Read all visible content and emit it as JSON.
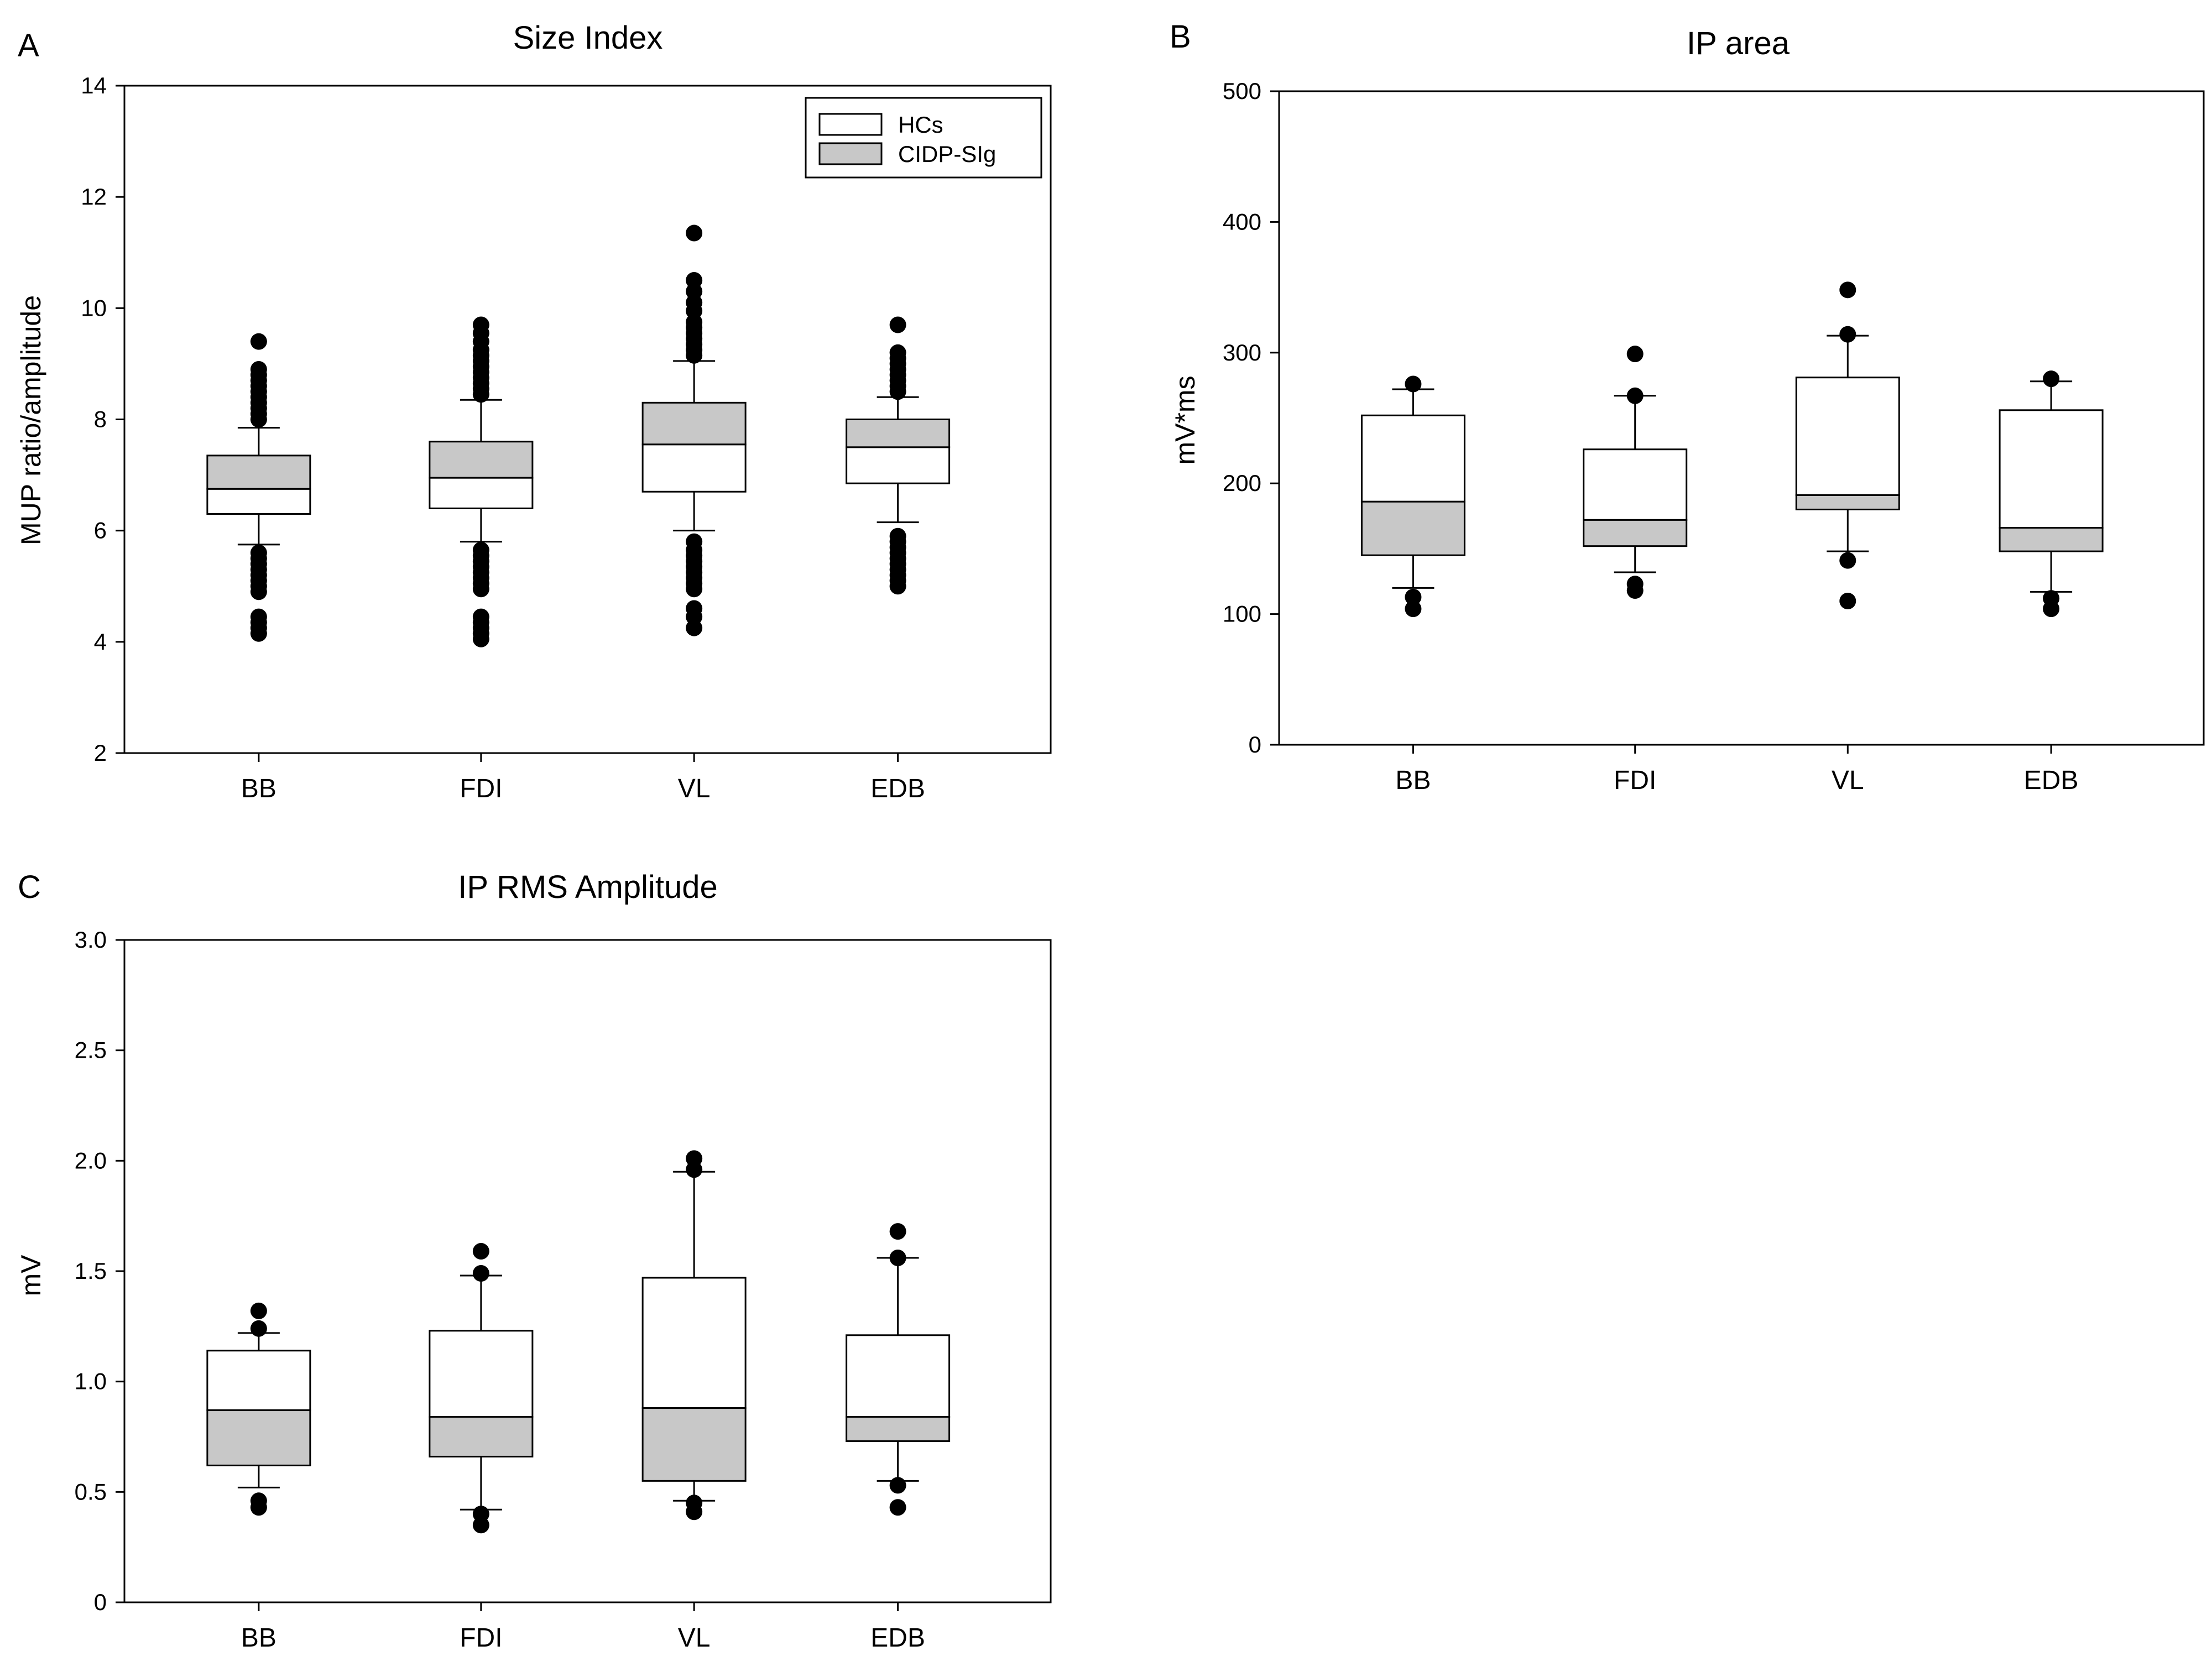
{
  "figure": {
    "legend": {
      "position": "top-right of panel A",
      "entries": [
        {
          "label": "HCs",
          "fill": "#ffffff"
        },
        {
          "label": "CIDP-SIg",
          "fill": "#c8c8c8"
        }
      ]
    }
  },
  "chart_data": [
    {
      "type": "box",
      "panel_label": "A",
      "title": "Size Index",
      "xlabel": "",
      "ylabel": "MUP ratio/amplitude",
      "ylim": [
        2,
        14
      ],
      "yticks": [
        2,
        4,
        6,
        8,
        10,
        12,
        14
      ],
      "ytick_labels": [
        "2",
        "4",
        "6",
        "8",
        "10",
        "12",
        "14"
      ],
      "categories": [
        "BB",
        "FDI",
        "VL",
        "EDB"
      ],
      "series": [
        {
          "name": "HCs",
          "fill": "#ffffff",
          "boxes": [
            [
              6.3,
              6.75
            ],
            [
              6.4,
              6.95
            ],
            [
              6.7,
              7.55
            ],
            [
              6.85,
              7.5
            ]
          ]
        },
        {
          "name": "CIDP-SIg",
          "fill": "#c8c8c8",
          "boxes": [
            [
              6.75,
              7.35
            ],
            [
              6.95,
              7.6
            ],
            [
              7.55,
              8.3
            ],
            [
              7.5,
              8.0
            ]
          ]
        }
      ],
      "whiskers": [
        [
          5.75,
          7.85
        ],
        [
          5.8,
          8.35
        ],
        [
          6.0,
          9.05
        ],
        [
          6.15,
          8.4
        ]
      ],
      "outliers": [
        [
          4.15,
          4.25,
          4.35,
          4.45,
          4.9,
          5.0,
          5.1,
          5.2,
          5.3,
          5.4,
          5.5,
          5.6,
          8.0,
          8.1,
          8.2,
          8.3,
          8.4,
          8.5,
          8.6,
          8.7,
          8.8,
          8.9,
          9.4
        ],
        [
          4.05,
          4.15,
          4.25,
          4.35,
          4.45,
          4.95,
          5.05,
          5.15,
          5.25,
          5.35,
          5.45,
          5.55,
          5.65,
          8.45,
          8.55,
          8.65,
          8.75,
          8.85,
          8.95,
          9.05,
          9.15,
          9.25,
          9.4,
          9.55,
          9.7
        ],
        [
          4.25,
          4.45,
          4.6,
          4.95,
          5.05,
          5.15,
          5.25,
          5.35,
          5.45,
          5.55,
          5.65,
          5.8,
          9.15,
          9.25,
          9.35,
          9.45,
          9.55,
          9.65,
          9.75,
          9.95,
          10.1,
          10.3,
          10.5,
          11.35
        ],
        [
          5.0,
          5.1,
          5.2,
          5.3,
          5.4,
          5.5,
          5.6,
          5.7,
          5.8,
          5.9,
          8.5,
          8.6,
          8.7,
          8.8,
          8.9,
          9.0,
          9.1,
          9.2,
          9.7
        ]
      ]
    },
    {
      "type": "box",
      "panel_label": "B",
      "title": "IP area",
      "xlabel": "",
      "ylabel": "mV*ms",
      "ylim": [
        0,
        500
      ],
      "yticks": [
        0,
        100,
        200,
        300,
        400,
        500
      ],
      "ytick_labels": [
        "0",
        "100",
        "200",
        "300",
        "400",
        "500"
      ],
      "categories": [
        "BB",
        "FDI",
        "VL",
        "EDB"
      ],
      "series": [
        {
          "name": "HCs",
          "fill": "#ffffff",
          "boxes": [
            [
              186,
              252
            ],
            [
              172,
              226
            ],
            [
              191,
              281
            ],
            [
              166,
              256
            ]
          ]
        },
        {
          "name": "CIDP-SIg",
          "fill": "#c8c8c8",
          "boxes": [
            [
              145,
              186
            ],
            [
              152,
              172
            ],
            [
              180,
              191
            ],
            [
              148,
              166
            ]
          ]
        }
      ],
      "whiskers": [
        [
          120,
          272
        ],
        [
          132,
          267
        ],
        [
          148,
          313
        ],
        [
          117,
          278
        ]
      ],
      "outliers": [
        [
          104,
          113,
          276
        ],
        [
          118,
          123,
          267,
          299
        ],
        [
          110,
          141,
          314,
          348
        ],
        [
          104,
          112,
          280
        ]
      ]
    },
    {
      "type": "box",
      "panel_label": "C",
      "title": "IP RMS Amplitude",
      "xlabel": "",
      "ylabel": "mV",
      "ylim": [
        0,
        3.0
      ],
      "yticks": [
        0,
        0.5,
        1.0,
        1.5,
        2.0,
        2.5,
        3.0
      ],
      "ytick_labels": [
        "0",
        "0.5",
        "1.0",
        "1.5",
        "2.0",
        "2.5",
        "3.0"
      ],
      "categories": [
        "BB",
        "FDI",
        "VL",
        "EDB"
      ],
      "series": [
        {
          "name": "HCs",
          "fill": "#ffffff",
          "boxes": [
            [
              0.87,
              1.14
            ],
            [
              0.84,
              1.23
            ],
            [
              0.88,
              1.47
            ],
            [
              0.84,
              1.21
            ]
          ]
        },
        {
          "name": "CIDP-SIg",
          "fill": "#c8c8c8",
          "boxes": [
            [
              0.62,
              0.87
            ],
            [
              0.66,
              0.84
            ],
            [
              0.55,
              0.88
            ],
            [
              0.73,
              0.84
            ]
          ]
        }
      ],
      "whiskers": [
        [
          0.52,
          1.22
        ],
        [
          0.42,
          1.48
        ],
        [
          0.46,
          1.95
        ],
        [
          0.55,
          1.56
        ]
      ],
      "outliers": [
        [
          0.43,
          0.46,
          1.24,
          1.32
        ],
        [
          0.35,
          0.4,
          1.49,
          1.59
        ],
        [
          0.41,
          0.45,
          1.96,
          2.01
        ],
        [
          0.43,
          0.53,
          1.56,
          1.68
        ]
      ]
    }
  ]
}
